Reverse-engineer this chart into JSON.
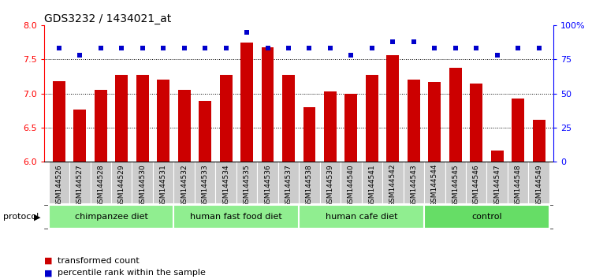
{
  "title": "GDS3232 / 1434021_at",
  "samples": [
    "GSM144526",
    "GSM144527",
    "GSM144528",
    "GSM144529",
    "GSM144530",
    "GSM144531",
    "GSM144532",
    "GSM144533",
    "GSM144534",
    "GSM144535",
    "GSM144536",
    "GSM144537",
    "GSM144538",
    "GSM144539",
    "GSM144540",
    "GSM144541",
    "GSM144542",
    "GSM144543",
    "GSM144544",
    "GSM144545",
    "GSM144546",
    "GSM144547",
    "GSM144548",
    "GSM144549"
  ],
  "bar_values": [
    7.18,
    6.76,
    7.05,
    7.27,
    7.27,
    7.2,
    7.05,
    6.89,
    7.27,
    7.75,
    7.68,
    7.27,
    6.8,
    7.03,
    7.0,
    7.27,
    7.56,
    7.2,
    7.17,
    7.38,
    7.15,
    6.17,
    6.93,
    6.62
  ],
  "percentile_values": [
    83,
    78,
    83,
    83,
    83,
    83,
    83,
    83,
    83,
    95,
    83,
    83,
    83,
    83,
    78,
    83,
    88,
    88,
    83,
    83,
    83,
    78,
    83,
    83
  ],
  "bar_color": "#cc0000",
  "percentile_color": "#0000cc",
  "ylim_left": [
    6.0,
    8.0
  ],
  "ylim_right": [
    0,
    100
  ],
  "yticks_left": [
    6.0,
    6.5,
    7.0,
    7.5,
    8.0
  ],
  "yticks_right": [
    0,
    25,
    50,
    75,
    100
  ],
  "ytick_labels_right": [
    "0",
    "25",
    "50",
    "75",
    "100%"
  ],
  "groups": [
    {
      "label": "chimpanzee diet",
      "start": 0,
      "end": 5,
      "color": "#90EE90"
    },
    {
      "label": "human fast food diet",
      "start": 6,
      "end": 11,
      "color": "#90EE90"
    },
    {
      "label": "human cafe diet",
      "start": 12,
      "end": 17,
      "color": "#90EE90"
    },
    {
      "label": "control",
      "start": 18,
      "end": 23,
      "color": "#66DD66"
    }
  ],
  "protocol_label": "protocol",
  "legend_items": [
    {
      "label": "transformed count",
      "color": "#cc0000"
    },
    {
      "label": "percentile rank within the sample",
      "color": "#0000cc"
    }
  ],
  "background_color": "#ffffff",
  "tick_bg_color": "#cccccc",
  "bar_width": 0.6
}
